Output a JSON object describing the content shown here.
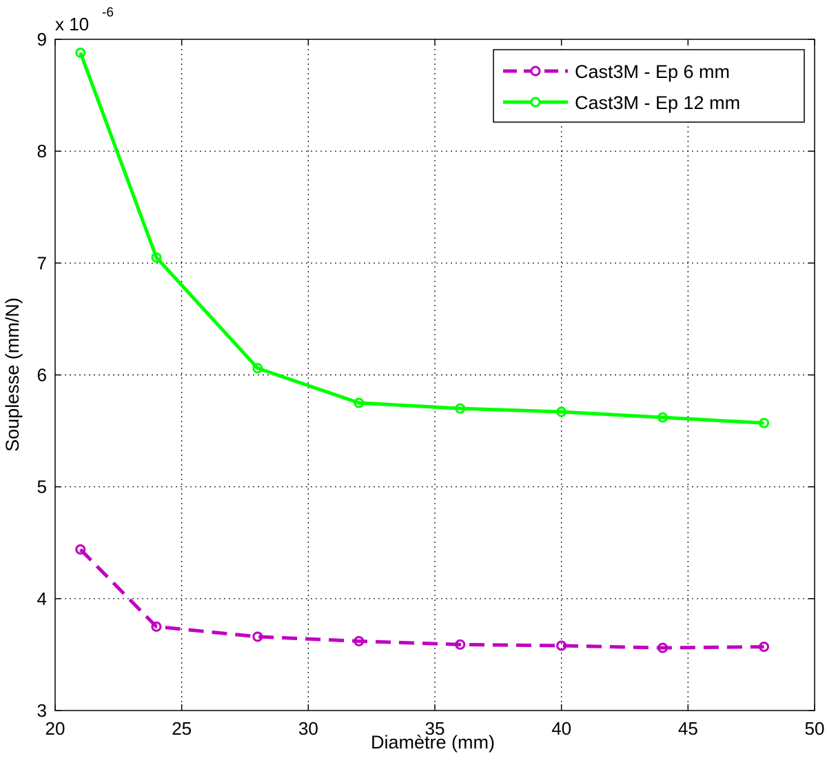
{
  "chart_data": {
    "type": "line",
    "title": "",
    "xlabel": "Diamètre (mm)",
    "ylabel": "Souplesse (mm/N)",
    "y_exponent_base": "x 10",
    "y_exponent": "-6",
    "xlim": [
      20,
      50
    ],
    "ylim": [
      3,
      9
    ],
    "xticks": [
      20,
      25,
      30,
      35,
      40,
      45,
      50
    ],
    "yticks": [
      3,
      4,
      5,
      6,
      7,
      8,
      9
    ],
    "grid": true,
    "legend_position": "top-right",
    "series": [
      {
        "name": "Cast3M - Ep 6 mm",
        "color": "#c000c0",
        "line_style": "dashed",
        "marker": "circle",
        "x": [
          21,
          24,
          28,
          32,
          36,
          40,
          44,
          48
        ],
        "y": [
          4.44,
          3.75,
          3.66,
          3.62,
          3.59,
          3.58,
          3.56,
          3.57
        ]
      },
      {
        "name": "Cast3M - Ep 12 mm",
        "color": "#00ff00",
        "line_style": "solid",
        "marker": "circle",
        "x": [
          21,
          24,
          28,
          32,
          36,
          40,
          44,
          48
        ],
        "y": [
          8.88,
          7.05,
          6.06,
          5.75,
          5.7,
          5.67,
          5.62,
          5.57
        ]
      }
    ]
  }
}
